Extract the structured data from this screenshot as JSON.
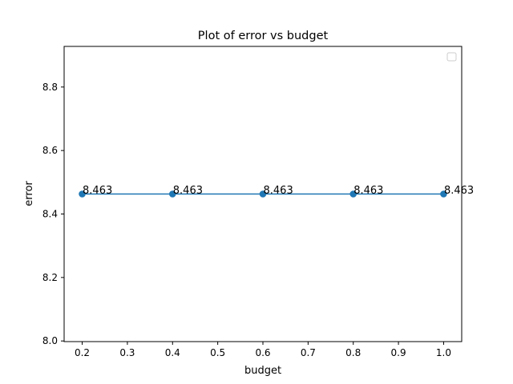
{
  "chart_data": {
    "type": "line",
    "title": "Plot of error vs budget",
    "xlabel": "budget",
    "ylabel": "error",
    "x": [
      0.2,
      0.4,
      0.6,
      0.8,
      1.0
    ],
    "series": [
      {
        "name": "",
        "values": [
          8.463,
          8.463,
          8.463,
          8.463,
          8.463
        ],
        "color": "#1f77b4"
      }
    ],
    "data_labels": [
      "8.463",
      "8.463",
      "8.463",
      "8.463",
      "8.463"
    ],
    "xlim": [
      0.16,
      1.04
    ],
    "ylim": [
      7.998,
      8.928
    ],
    "xticks": [
      0.2,
      0.3,
      0.4,
      0.5,
      0.6,
      0.7,
      0.8,
      0.9,
      1.0
    ],
    "xtick_labels": [
      "0.2",
      "0.3",
      "0.4",
      "0.5",
      "0.6",
      "0.7",
      "0.8",
      "0.9",
      "1.0"
    ],
    "yticks": [
      8.0,
      8.2,
      8.4,
      8.6,
      8.8
    ],
    "ytick_labels": [
      "8.0",
      "8.2",
      "8.4",
      "8.6",
      "8.8"
    ],
    "grid": false,
    "legend": "top-right"
  }
}
